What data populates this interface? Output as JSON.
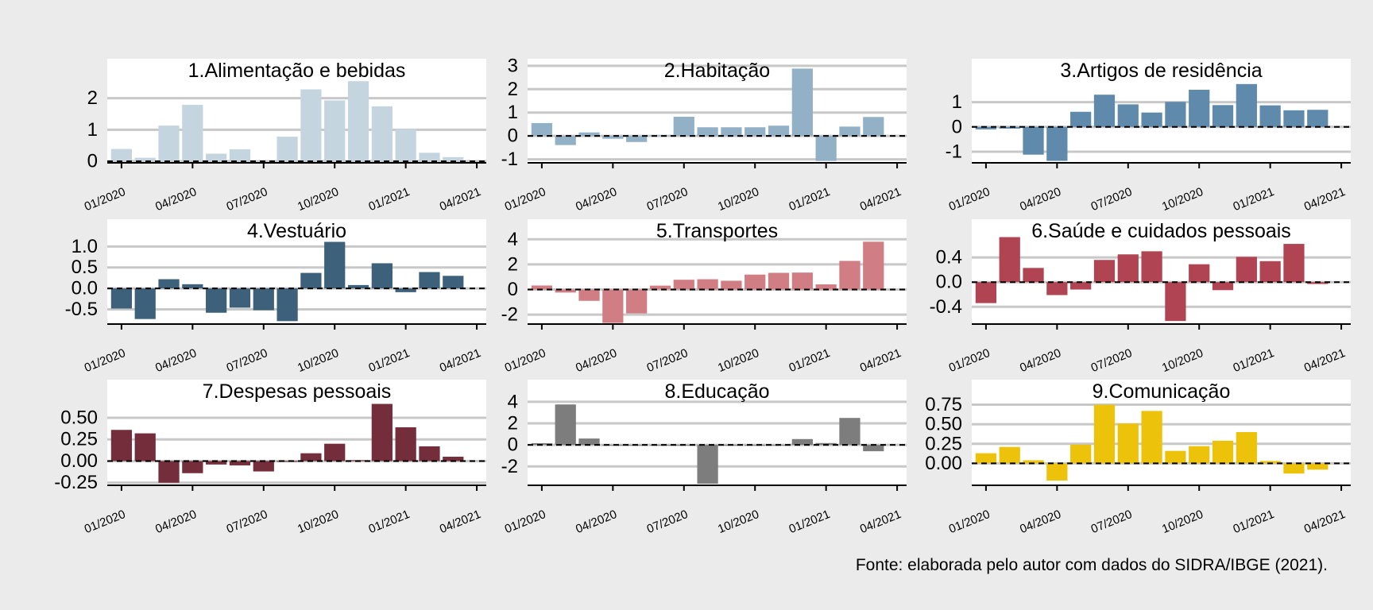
{
  "source_note": "Fonte: elaborada pelo autor com dados do SIDRA/IBGE (2021).",
  "chart_data": [
    {
      "type": "bar",
      "title": "1.Alimentação e bebidas",
      "color": "#c5d5e0",
      "x": [
        "01/2020",
        "02/2020",
        "03/2020",
        "04/2020",
        "05/2020",
        "06/2020",
        "07/2020",
        "08/2020",
        "09/2020",
        "10/2020",
        "11/2020",
        "12/2020",
        "01/2021",
        "02/2021",
        "03/2021",
        "04/2021"
      ],
      "values": [
        0.39,
        0.11,
        1.13,
        1.79,
        0.24,
        0.38,
        0.01,
        0.78,
        2.28,
        1.93,
        2.54,
        1.74,
        1.02,
        0.27,
        0.13,
        0.0
      ],
      "ylim": [
        -0.05,
        3.25
      ],
      "yticks": [
        0,
        1,
        2
      ],
      "ytick_labels": [
        "0",
        "1",
        "2"
      ],
      "xtick_labels": [
        "01/2020",
        "04/2020",
        "07/2020",
        "10/2020",
        "01/2021",
        "04/2021"
      ],
      "grid": true
    },
    {
      "type": "bar",
      "title": "2.Habitação",
      "color": "#93b1c6",
      "x": [
        "01/2020",
        "02/2020",
        "03/2020",
        "04/2020",
        "05/2020",
        "06/2020",
        "07/2020",
        "08/2020",
        "09/2020",
        "10/2020",
        "11/2020",
        "12/2020",
        "01/2021",
        "02/2021",
        "03/2021",
        "04/2021"
      ],
      "values": [
        0.55,
        -0.39,
        0.15,
        -0.12,
        -0.26,
        0.03,
        0.82,
        0.37,
        0.37,
        0.37,
        0.44,
        2.88,
        -1.07,
        0.4,
        0.81,
        0.0
      ],
      "ylim": [
        -1.15,
        3.3
      ],
      "yticks": [
        -1,
        0,
        1,
        2,
        3
      ],
      "ytick_labels": [
        "-1",
        "0",
        "1",
        "2",
        "3"
      ],
      "xtick_labels": [
        "01/2020",
        "04/2020",
        "07/2020",
        "10/2020",
        "01/2021",
        "04/2021"
      ],
      "grid": true
    },
    {
      "type": "bar",
      "title": "3.Artigos de residência",
      "color": "#5f8aab",
      "x": [
        "01/2020",
        "02/2020",
        "03/2020",
        "04/2020",
        "05/2020",
        "06/2020",
        "07/2020",
        "08/2020",
        "09/2020",
        "10/2020",
        "11/2020",
        "12/2020",
        "01/2021",
        "02/2021",
        "03/2021",
        "04/2021"
      ],
      "values": [
        -0.1,
        -0.07,
        -1.12,
        -1.37,
        0.61,
        1.3,
        0.91,
        0.58,
        1.01,
        1.5,
        0.88,
        1.73,
        0.87,
        0.67,
        0.69,
        0.0
      ],
      "ylim": [
        -1.45,
        2.75
      ],
      "yticks": [
        -1,
        0,
        1
      ],
      "ytick_labels": [
        "-1",
        "0",
        "1"
      ],
      "xtick_labels": [
        "01/2020",
        "04/2020",
        "07/2020",
        "10/2020",
        "01/2021",
        "04/2021"
      ],
      "grid": true
    },
    {
      "type": "bar",
      "title": "4.Vestuário",
      "color": "#3d617a",
      "x": [
        "01/2020",
        "02/2020",
        "03/2020",
        "04/2020",
        "05/2020",
        "06/2020",
        "07/2020",
        "08/2020",
        "09/2020",
        "10/2020",
        "11/2020",
        "12/2020",
        "01/2021",
        "02/2021",
        "03/2021",
        "04/2021"
      ],
      "values": [
        -0.48,
        -0.73,
        0.22,
        0.1,
        -0.58,
        -0.46,
        -0.52,
        -0.78,
        0.37,
        1.11,
        0.08,
        0.6,
        -0.09,
        0.39,
        0.3,
        0.0
      ],
      "ylim": [
        -0.85,
        1.65
      ],
      "yticks": [
        -0.5,
        0,
        0.5,
        1
      ],
      "ytick_labels": [
        "-0.5",
        "0.0",
        "0.5",
        "1.0"
      ],
      "xtick_labels": [
        "01/2020",
        "04/2020",
        "07/2020",
        "10/2020",
        "01/2021",
        "04/2021"
      ],
      "grid": true
    },
    {
      "type": "bar",
      "title": "5.Transportes",
      "color": "#d07d83",
      "x": [
        "01/2020",
        "02/2020",
        "03/2020",
        "04/2020",
        "05/2020",
        "06/2020",
        "07/2020",
        "08/2020",
        "09/2020",
        "10/2020",
        "11/2020",
        "12/2020",
        "01/2021",
        "02/2021",
        "03/2021",
        "04/2021"
      ],
      "values": [
        0.32,
        -0.24,
        -0.9,
        -2.66,
        -1.9,
        0.31,
        0.78,
        0.82,
        0.7,
        1.19,
        1.33,
        1.35,
        0.41,
        2.28,
        3.81,
        0.0
      ],
      "ylim": [
        -2.75,
        5.6
      ],
      "yticks": [
        -2,
        0,
        2,
        4
      ],
      "ytick_labels": [
        "-2",
        "0",
        "2",
        "4"
      ],
      "xtick_labels": [
        "01/2020",
        "04/2020",
        "07/2020",
        "10/2020",
        "01/2021",
        "04/2021"
      ],
      "grid": true
    },
    {
      "type": "bar",
      "title": "6.Saúde e cuidados pessoais",
      "color": "#b04452",
      "x": [
        "01/2020",
        "02/2020",
        "03/2020",
        "04/2020",
        "05/2020",
        "06/2020",
        "07/2020",
        "08/2020",
        "09/2020",
        "10/2020",
        "11/2020",
        "12/2020",
        "01/2021",
        "02/2021",
        "03/2021",
        "04/2021"
      ],
      "values": [
        -0.34,
        0.73,
        0.23,
        -0.21,
        -0.12,
        0.36,
        0.45,
        0.5,
        -0.63,
        0.29,
        -0.13,
        0.41,
        0.34,
        0.62,
        -0.03,
        0.0
      ],
      "ylim": [
        -0.68,
        1.02
      ],
      "yticks": [
        -0.4,
        0,
        0.4
      ],
      "ytick_labels": [
        "-0.4",
        "0.0",
        "0.4"
      ],
      "xtick_labels": [
        "01/2020",
        "04/2020",
        "07/2020",
        "10/2020",
        "01/2021",
        "04/2021"
      ],
      "grid": true
    },
    {
      "type": "bar",
      "title": "7.Despesas pessoais",
      "color": "#742d3a",
      "x": [
        "01/2020",
        "02/2020",
        "03/2020",
        "04/2020",
        "05/2020",
        "06/2020",
        "07/2020",
        "08/2020",
        "09/2020",
        "10/2020",
        "11/2020",
        "12/2020",
        "01/2021",
        "02/2021",
        "03/2021",
        "04/2021"
      ],
      "values": [
        0.36,
        0.32,
        -0.25,
        -0.14,
        -0.04,
        -0.05,
        -0.12,
        -0.01,
        0.09,
        0.2,
        0.01,
        0.66,
        0.39,
        0.17,
        0.05,
        0.0
      ],
      "ylim": [
        -0.28,
        0.94
      ],
      "yticks": [
        -0.25,
        0,
        0.25,
        0.5
      ],
      "ytick_labels": [
        "-0.25",
        "0.00",
        "0.25",
        "0.50"
      ],
      "xtick_labels": [
        "01/2020",
        "04/2020",
        "07/2020",
        "10/2020",
        "01/2021",
        "04/2021"
      ],
      "grid": true
    },
    {
      "type": "bar",
      "title": "8.Educação",
      "color": "#7d7d7d",
      "x": [
        "01/2020",
        "02/2020",
        "03/2020",
        "04/2020",
        "05/2020",
        "06/2020",
        "07/2020",
        "08/2020",
        "09/2020",
        "10/2020",
        "11/2020",
        "12/2020",
        "01/2021",
        "02/2021",
        "03/2021",
        "04/2021"
      ],
      "values": [
        0.16,
        3.75,
        0.59,
        -0.05,
        -0.01,
        -0.01,
        -0.03,
        -3.6,
        -0.03,
        -0.04,
        -0.03,
        0.54,
        0.17,
        2.5,
        -0.59,
        0.0
      ],
      "ylim": [
        -3.75,
        6.05
      ],
      "yticks": [
        -2,
        0,
        2,
        4
      ],
      "ytick_labels": [
        "-2",
        "0",
        "2",
        "4"
      ],
      "xtick_labels": [
        "01/2020",
        "04/2020",
        "07/2020",
        "10/2020",
        "01/2021",
        "04/2021"
      ],
      "grid": true
    },
    {
      "type": "bar",
      "title": "9.Comunicação",
      "color": "#ecc20b",
      "x": [
        "01/2020",
        "02/2020",
        "03/2020",
        "04/2020",
        "05/2020",
        "06/2020",
        "07/2020",
        "08/2020",
        "09/2020",
        "10/2020",
        "11/2020",
        "12/2020",
        "01/2021",
        "02/2021",
        "03/2021",
        "04/2021"
      ],
      "values": [
        0.13,
        0.21,
        0.04,
        -0.22,
        0.24,
        0.75,
        0.51,
        0.67,
        0.16,
        0.22,
        0.29,
        0.4,
        0.03,
        -0.13,
        -0.08,
        0.0
      ],
      "ylim": [
        -0.28,
        1.07
      ],
      "yticks": [
        0,
        0.25,
        0.5,
        0.75
      ],
      "ytick_labels": [
        "0.00",
        "0.25",
        "0.50",
        "0.75"
      ],
      "xtick_labels": [
        "01/2020",
        "04/2020",
        "07/2020",
        "10/2020",
        "01/2021",
        "04/2021"
      ],
      "grid": true
    }
  ]
}
